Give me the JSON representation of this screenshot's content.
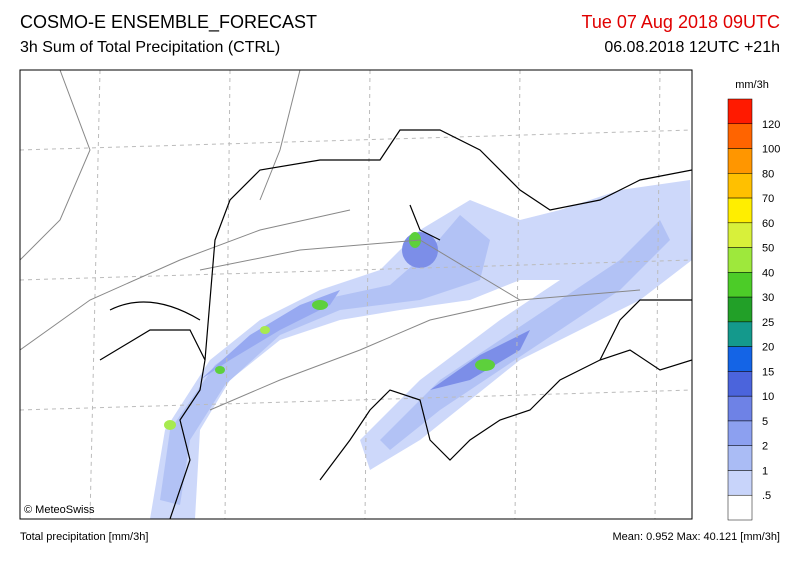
{
  "header": {
    "title": "COSMO-E ENSEMBLE_FORECAST",
    "subtitle": "3h Sum of Total Precipitation (CTRL)",
    "valid_time": "Tue 07 Aug 2018 09UTC",
    "run_time": "06.08.2018 12UTC +21h"
  },
  "legend": {
    "unit": "mm/3h",
    "labels": [
      "120",
      "100",
      "80",
      "70",
      "60",
      "50",
      "40",
      "30",
      "25",
      "20",
      "15",
      "10",
      "5",
      "2",
      "1",
      ".5"
    ],
    "colors": [
      "#ff1a00",
      "#ff6400",
      "#ff9600",
      "#ffc000",
      "#ffee00",
      "#d8f03a",
      "#9ee83c",
      "#4ccc28",
      "#22a028",
      "#14998c",
      "#1464e6",
      "#4b64dc",
      "#6e82e6",
      "#8ca0f0",
      "#aabcf5",
      "#c8d4fa",
      "#ffffff"
    ]
  },
  "map": {
    "copyright": "© MeteoSwiss"
  },
  "footer": {
    "left": "Total precipitation [mm/3h]",
    "right": "Mean:  0.952 Max: 40.121 [mm/3h]"
  }
}
